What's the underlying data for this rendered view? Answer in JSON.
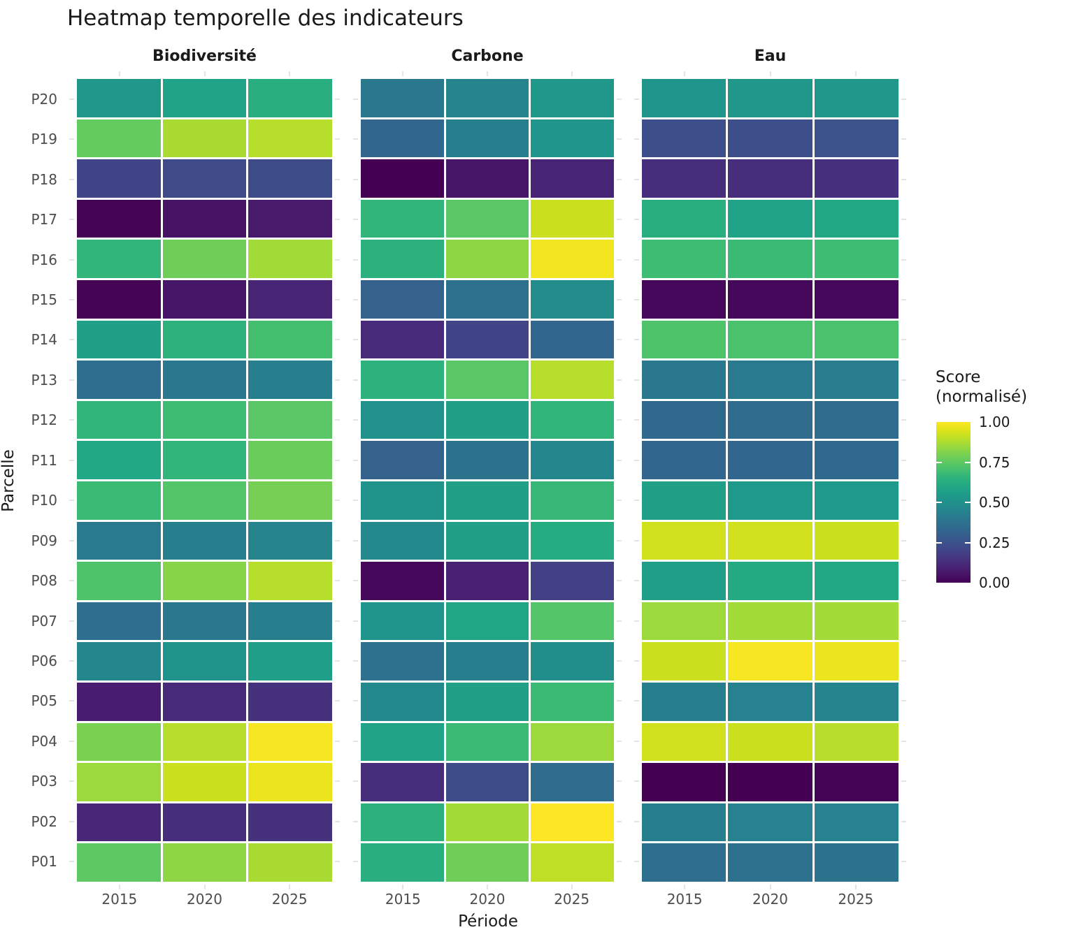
{
  "title": "Heatmap temporelle des indicateurs",
  "axes": {
    "x_title": "Période",
    "y_title": "Parcelle"
  },
  "legend": {
    "title_line1": "Score",
    "title_line2": "(normalisé)",
    "tick_labels": [
      "1.00",
      "0.75",
      "0.50",
      "0.25",
      "0.00"
    ]
  },
  "chart_data": {
    "type": "heatmap",
    "title": "Heatmap temporelle des indicateurs",
    "xlabel": "Période",
    "ylabel": "Parcelle",
    "facets": [
      "Biodiversité",
      "Carbone",
      "Eau"
    ],
    "x": [
      "2015",
      "2020",
      "2025"
    ],
    "rows_top_to_bottom": [
      "P20",
      "P19",
      "P18",
      "P17",
      "P16",
      "P15",
      "P14",
      "P13",
      "P12",
      "P11",
      "P10",
      "P09",
      "P08",
      "P07",
      "P06",
      "P05",
      "P04",
      "P03",
      "P02",
      "P01"
    ],
    "colormap": "viridis",
    "value_domain": [
      0,
      1
    ],
    "legend_title": "Score (normalisé)",
    "legend_ticks": [
      1.0,
      0.75,
      0.5,
      0.25,
      0.0
    ],
    "series": [
      {
        "name": "Biodiversité",
        "values": [
          [
            0.53,
            0.58,
            0.63
          ],
          [
            0.76,
            0.87,
            0.89
          ],
          [
            0.2,
            0.22,
            0.23
          ],
          [
            0.01,
            0.05,
            0.07
          ],
          [
            0.66,
            0.78,
            0.86
          ],
          [
            0.01,
            0.06,
            0.1
          ],
          [
            0.57,
            0.65,
            0.7
          ],
          [
            0.36,
            0.4,
            0.43
          ],
          [
            0.66,
            0.69,
            0.74
          ],
          [
            0.6,
            0.66,
            0.77
          ],
          [
            0.68,
            0.73,
            0.79
          ],
          [
            0.41,
            0.43,
            0.45
          ],
          [
            0.72,
            0.82,
            0.89
          ],
          [
            0.36,
            0.4,
            0.43
          ],
          [
            0.46,
            0.51,
            0.56
          ],
          [
            0.08,
            0.12,
            0.14
          ],
          [
            0.8,
            0.89,
            0.99
          ],
          [
            0.85,
            0.92,
            0.97
          ],
          [
            0.11,
            0.13,
            0.14
          ],
          [
            0.75,
            0.83,
            0.87
          ]
        ]
      },
      {
        "name": "Carbone",
        "values": [
          [
            0.4,
            0.45,
            0.53
          ],
          [
            0.33,
            0.43,
            0.52
          ],
          [
            0.0,
            0.06,
            0.1
          ],
          [
            0.66,
            0.74,
            0.92
          ],
          [
            0.64,
            0.83,
            0.98
          ],
          [
            0.31,
            0.37,
            0.48
          ],
          [
            0.12,
            0.2,
            0.33
          ],
          [
            0.65,
            0.74,
            0.89
          ],
          [
            0.5,
            0.57,
            0.66
          ],
          [
            0.31,
            0.38,
            0.46
          ],
          [
            0.51,
            0.57,
            0.67
          ],
          [
            0.47,
            0.57,
            0.62
          ],
          [
            0.02,
            0.09,
            0.19
          ],
          [
            0.52,
            0.59,
            0.73
          ],
          [
            0.37,
            0.43,
            0.49
          ],
          [
            0.47,
            0.57,
            0.68
          ],
          [
            0.58,
            0.68,
            0.85
          ],
          [
            0.13,
            0.23,
            0.35
          ],
          [
            0.64,
            0.86,
            1.0
          ],
          [
            0.63,
            0.78,
            0.9
          ]
        ]
      },
      {
        "name": "Eau",
        "values": [
          [
            0.52,
            0.53,
            0.53
          ],
          [
            0.24,
            0.24,
            0.25
          ],
          [
            0.13,
            0.13,
            0.14
          ],
          [
            0.63,
            0.58,
            0.6
          ],
          [
            0.69,
            0.68,
            0.69
          ],
          [
            0.02,
            0.02,
            0.02
          ],
          [
            0.72,
            0.71,
            0.71
          ],
          [
            0.4,
            0.41,
            0.42
          ],
          [
            0.34,
            0.35,
            0.35
          ],
          [
            0.33,
            0.33,
            0.34
          ],
          [
            0.57,
            0.54,
            0.54
          ],
          [
            0.93,
            0.93,
            0.92
          ],
          [
            0.56,
            0.61,
            0.6
          ],
          [
            0.85,
            0.86,
            0.86
          ],
          [
            0.92,
            0.99,
            0.97
          ],
          [
            0.43,
            0.44,
            0.45
          ],
          [
            0.93,
            0.92,
            0.89
          ],
          [
            0.0,
            0.0,
            0.01
          ],
          [
            0.43,
            0.44,
            0.44
          ],
          [
            0.36,
            0.37,
            0.38
          ]
        ]
      }
    ]
  }
}
